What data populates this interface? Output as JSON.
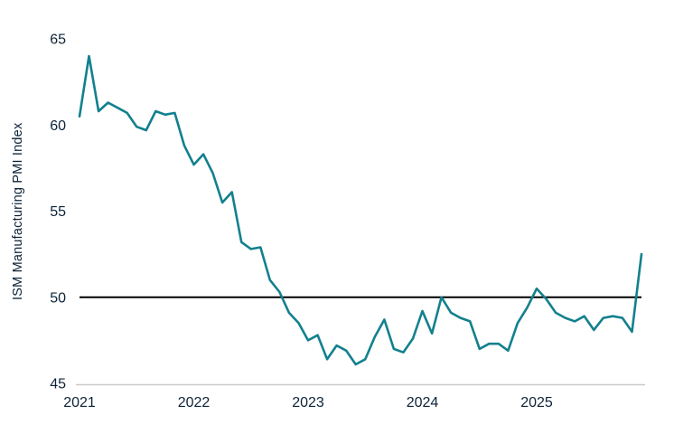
{
  "page": {
    "background": "#ffffff"
  },
  "chart_data": {
    "type": "line",
    "title": "",
    "ylabel": "ISM Manufacturing PMI Index",
    "xlabel": "",
    "ylim": [
      45,
      65
    ],
    "yticks": [
      65,
      60,
      55,
      50,
      45
    ],
    "xtick_labels": [
      "2021",
      "2022",
      "2023",
      "2024",
      "2025"
    ],
    "grid": false,
    "legend_position": "none",
    "tick_label_color": "#0d2339",
    "axis_line_color": "#c9c9c9",
    "reference_line": {
      "value": 50,
      "color": "#000000"
    },
    "series": [
      {
        "name": "ISM Manufacturing PMI Index",
        "color": "#13808E",
        "frequency": "monthly",
        "start": "2021-01",
        "values": [
          60.5,
          64.0,
          60.8,
          61.3,
          61.0,
          60.7,
          59.9,
          59.7,
          60.8,
          60.6,
          60.7,
          58.8,
          57.7,
          58.3,
          57.2,
          55.5,
          56.1,
          53.2,
          52.8,
          52.9,
          51.0,
          50.3,
          49.1,
          48.5,
          47.5,
          47.8,
          46.4,
          47.2,
          46.9,
          46.1,
          46.4,
          47.7,
          48.7,
          47.0,
          46.8,
          47.6,
          49.2,
          47.9,
          50.0,
          49.1,
          48.8,
          48.6,
          47.0,
          47.3,
          47.3,
          46.9,
          48.5,
          49.4,
          50.5,
          49.9,
          49.1,
          48.8,
          48.6,
          48.9,
          48.1,
          48.8,
          48.9,
          48.8,
          48.0,
          52.5
        ]
      }
    ]
  }
}
